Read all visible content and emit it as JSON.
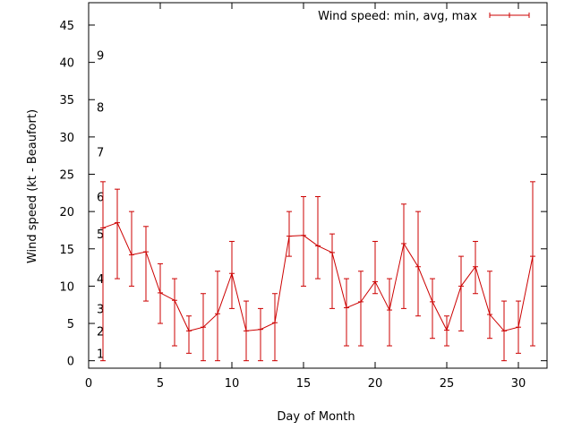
{
  "chart_data": {
    "type": "line",
    "title": "",
    "xlabel": "Day of Month",
    "ylabel": "Wind speed (kt - Beaufort)",
    "xlim": [
      0,
      32
    ],
    "ylim": [
      -1,
      48
    ],
    "x_ticks": [
      0,
      5,
      10,
      15,
      20,
      25,
      30
    ],
    "y_ticks": [
      0,
      5,
      10,
      15,
      20,
      25,
      30,
      35,
      40,
      45
    ],
    "grid": false,
    "legend_position": "top-right",
    "series": [
      {
        "name": "Wind speed: min, avg, max",
        "color": "#cc0000",
        "error_bars": true,
        "x": [
          1,
          2,
          3,
          4,
          5,
          6,
          7,
          8,
          9,
          10,
          11,
          12,
          13,
          14,
          15,
          16,
          17,
          18,
          19,
          20,
          21,
          22,
          23,
          24,
          25,
          26,
          27,
          28,
          29,
          30,
          31
        ],
        "avg": [
          17.8,
          18.5,
          14.2,
          14.6,
          9.1,
          8.1,
          4.0,
          4.5,
          6.3,
          11.7,
          4.0,
          4.2,
          5.1,
          16.7,
          16.8,
          15.4,
          14.5,
          7.1,
          7.9,
          10.6,
          6.8,
          15.7,
          12.6,
          7.9,
          4.1,
          10.0,
          12.6,
          6.2,
          4.0,
          4.5,
          14.0
        ],
        "min": [
          0,
          11,
          10,
          8,
          5,
          2,
          1,
          0,
          0,
          7,
          0,
          0,
          0,
          14,
          10,
          11,
          7,
          2,
          2,
          9,
          2,
          7,
          6,
          3,
          2,
          4,
          9,
          3,
          0,
          1,
          2
        ],
        "max": [
          24,
          23,
          20,
          18,
          13,
          11,
          6,
          9,
          12,
          16,
          8,
          7,
          9,
          20,
          22,
          22,
          17,
          11,
          12,
          16,
          11,
          21,
          20,
          11,
          6,
          14,
          16,
          12,
          8,
          8,
          24
        ]
      }
    ],
    "beaufort_labels": [
      {
        "label": "1",
        "y": 1
      },
      {
        "label": "2",
        "y": 4
      },
      {
        "label": "3",
        "y": 7
      },
      {
        "label": "4",
        "y": 11
      },
      {
        "label": "5",
        "y": 17
      },
      {
        "label": "6",
        "y": 22
      },
      {
        "label": "7",
        "y": 28
      },
      {
        "label": "8",
        "y": 34
      },
      {
        "label": "9",
        "y": 41
      }
    ]
  }
}
